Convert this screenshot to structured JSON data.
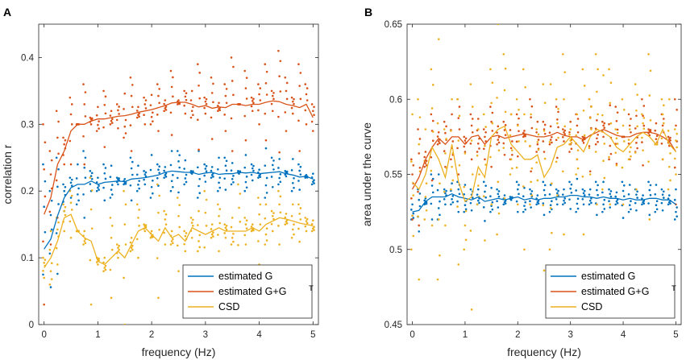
{
  "colors": {
    "estimated_g": "#0072BD",
    "estimated_ggt": "#D95319",
    "csd": "#EDB120",
    "axis": "#262626",
    "grid": "#e6e6e6"
  },
  "chart_data": [
    {
      "panel": "A",
      "type": "line",
      "title": "",
      "xlabel": "frequency (Hz)",
      "ylabel": "correlation r",
      "xlim": [
        -0.1,
        5.1
      ],
      "ylim": [
        0,
        0.45
      ],
      "xticks": [
        0,
        1,
        2,
        3,
        4,
        5
      ],
      "xtick_labels": [
        "0",
        "1",
        "2",
        "3",
        "4",
        "5"
      ],
      "yticks": [
        0,
        0.1,
        0.2,
        0.3,
        0.4
      ],
      "ytick_labels": [
        "0",
        "0.1",
        "0.2",
        "0.3",
        "0.4"
      ],
      "legend_position": "bottom-right",
      "legend": [
        {
          "label": "estimated G",
          "sup": ""
        },
        {
          "label": "estimated G+G",
          "sup": "T"
        },
        {
          "label": "CSD",
          "sup": ""
        }
      ],
      "x": [
        0,
        0.125,
        0.25,
        0.375,
        0.5,
        0.625,
        0.75,
        0.875,
        1.0,
        1.125,
        1.25,
        1.375,
        1.5,
        1.625,
        1.75,
        1.875,
        2.0,
        2.125,
        2.25,
        2.375,
        2.5,
        2.625,
        2.75,
        2.875,
        3.0,
        3.125,
        3.25,
        3.375,
        3.5,
        3.625,
        3.75,
        3.875,
        4.0,
        4.125,
        4.25,
        4.375,
        4.5,
        4.625,
        4.75,
        4.875,
        5.0
      ],
      "series": [
        {
          "name": "estimated G",
          "values": [
            0.113,
            0.128,
            0.163,
            0.19,
            0.205,
            0.21,
            0.21,
            0.215,
            0.21,
            0.213,
            0.214,
            0.215,
            0.214,
            0.218,
            0.219,
            0.22,
            0.222,
            0.224,
            0.228,
            0.23,
            0.229,
            0.228,
            0.228,
            0.225,
            0.227,
            0.228,
            0.225,
            0.226,
            0.226,
            0.228,
            0.227,
            0.228,
            0.226,
            0.227,
            0.228,
            0.229,
            0.226,
            0.224,
            0.221,
            0.222,
            0.218
          ],
          "spread": [
            0.24,
            0.2,
            0.25,
            0.21,
            0.22,
            0.18,
            0.26,
            0.23,
            0.2,
            0.24,
            0.19,
            0.22,
            0.21,
            0.25,
            0.2,
            0.23,
            0.19,
            0.24,
            0.22,
            0.2,
            0.26,
            0.21,
            0.23,
            0.19,
            0.24,
            0.22,
            0.2,
            0.25,
            0.21,
            0.23,
            0.2,
            0.24,
            0.22,
            0.19,
            0.25,
            0.21,
            0.23,
            0.2,
            0.24,
            0.22,
            0.21
          ]
        },
        {
          "name": "estimated G+G^T",
          "values": [
            0.165,
            0.19,
            0.24,
            0.26,
            0.29,
            0.3,
            0.3,
            0.305,
            0.308,
            0.308,
            0.31,
            0.312,
            0.313,
            0.315,
            0.318,
            0.32,
            0.322,
            0.325,
            0.328,
            0.332,
            0.333,
            0.333,
            0.33,
            0.326,
            0.328,
            0.324,
            0.326,
            0.325,
            0.33,
            0.33,
            0.328,
            0.33,
            0.33,
            0.333,
            0.335,
            0.334,
            0.33,
            0.328,
            0.325,
            0.33,
            0.31
          ],
          "spread": [
            0.3,
            0.26,
            0.32,
            0.28,
            0.34,
            0.3,
            0.36,
            0.31,
            0.29,
            0.35,
            0.3,
            0.33,
            0.28,
            0.37,
            0.31,
            0.34,
            0.3,
            0.36,
            0.32,
            0.38,
            0.33,
            0.35,
            0.31,
            0.39,
            0.34,
            0.37,
            0.32,
            0.36,
            0.4,
            0.33,
            0.38,
            0.34,
            0.36,
            0.39,
            0.35,
            0.41,
            0.37,
            0.34,
            0.39,
            0.36,
            0.33
          ]
        },
        {
          "name": "CSD",
          "values": [
            0.085,
            0.1,
            0.125,
            0.16,
            0.165,
            0.14,
            0.13,
            0.125,
            0.095,
            0.09,
            0.1,
            0.11,
            0.1,
            0.12,
            0.14,
            0.145,
            0.135,
            0.125,
            0.145,
            0.13,
            0.135,
            0.125,
            0.145,
            0.14,
            0.135,
            0.14,
            0.145,
            0.14,
            0.14,
            0.14,
            0.14,
            0.145,
            0.14,
            0.15,
            0.155,
            0.16,
            0.158,
            0.155,
            0.152,
            0.15,
            0.148
          ],
          "spread": [
            0.1,
            0.06,
            0.16,
            0.18,
            0.2,
            0.14,
            0.12,
            0.22,
            0.1,
            0.08,
            0.16,
            0.12,
            0.2,
            0.11,
            0.18,
            0.15,
            0.13,
            0.21,
            0.17,
            0.12,
            0.19,
            0.14,
            0.16,
            0.11,
            0.2,
            0.13,
            0.18,
            0.15,
            0.12,
            0.21,
            0.16,
            0.14,
            0.19,
            0.12,
            0.17,
            0.2,
            0.15,
            0.13,
            0.18,
            0.16,
            0.14
          ]
        }
      ]
    },
    {
      "panel": "B",
      "type": "line",
      "title": "",
      "xlabel": "frequency (Hz)",
      "ylabel": "area under the curve",
      "xlim": [
        -0.1,
        5.1
      ],
      "ylim": [
        0.45,
        0.65
      ],
      "xticks": [
        0,
        1,
        2,
        3,
        4,
        5
      ],
      "xtick_labels": [
        "0",
        "1",
        "2",
        "3",
        "4",
        "5"
      ],
      "yticks": [
        0.45,
        0.5,
        0.55,
        0.6,
        0.65
      ],
      "ytick_labels": [
        "0.45",
        "0.5",
        "0.55",
        "0.6",
        "0.65"
      ],
      "legend_position": "bottom-right",
      "legend": [
        {
          "label": "estimated G",
          "sup": ""
        },
        {
          "label": "estimated G+G",
          "sup": "T"
        },
        {
          "label": "CSD",
          "sup": ""
        }
      ],
      "x": [
        0,
        0.125,
        0.25,
        0.375,
        0.5,
        0.625,
        0.75,
        0.875,
        1.0,
        1.125,
        1.25,
        1.375,
        1.5,
        1.625,
        1.75,
        1.875,
        2.0,
        2.125,
        2.25,
        2.375,
        2.5,
        2.625,
        2.75,
        2.875,
        3.0,
        3.125,
        3.25,
        3.375,
        3.5,
        3.625,
        3.75,
        3.875,
        4.0,
        4.125,
        4.25,
        4.375,
        4.5,
        4.625,
        4.75,
        4.875,
        5.0
      ],
      "series": [
        {
          "name": "estimated G",
          "values": [
            0.525,
            0.526,
            0.532,
            0.535,
            0.535,
            0.535,
            0.537,
            0.535,
            0.534,
            0.533,
            0.535,
            0.532,
            0.533,
            0.534,
            0.533,
            0.534,
            0.535,
            0.533,
            0.534,
            0.533,
            0.534,
            0.534,
            0.535,
            0.535,
            0.536,
            0.536,
            0.535,
            0.535,
            0.534,
            0.535,
            0.534,
            0.534,
            0.533,
            0.534,
            0.533,
            0.533,
            0.534,
            0.534,
            0.533,
            0.533,
            0.53
          ],
          "spread": [
            0.52,
            0.54,
            0.53,
            0.55,
            0.52,
            0.54,
            0.53,
            0.545,
            0.525,
            0.54,
            0.53,
            0.545,
            0.525,
            0.54,
            0.53,
            0.535,
            0.545,
            0.525,
            0.54,
            0.53,
            0.545,
            0.525,
            0.54,
            0.53,
            0.545,
            0.525,
            0.54,
            0.53,
            0.545,
            0.525,
            0.54,
            0.53,
            0.545,
            0.525,
            0.54,
            0.53,
            0.545,
            0.525,
            0.54,
            0.53,
            0.52
          ]
        },
        {
          "name": "estimated G+G^T",
          "values": [
            0.54,
            0.548,
            0.56,
            0.568,
            0.574,
            0.57,
            0.575,
            0.575,
            0.57,
            0.575,
            0.576,
            0.57,
            0.575,
            0.576,
            0.574,
            0.575,
            0.576,
            0.577,
            0.576,
            0.575,
            0.575,
            0.576,
            0.578,
            0.576,
            0.575,
            0.575,
            0.573,
            0.576,
            0.578,
            0.58,
            0.578,
            0.576,
            0.575,
            0.575,
            0.577,
            0.578,
            0.578,
            0.577,
            0.575,
            0.572,
            0.565
          ],
          "spread": [
            0.56,
            0.58,
            0.555,
            0.59,
            0.57,
            0.585,
            0.56,
            0.6,
            0.575,
            0.59,
            0.565,
            0.58,
            0.595,
            0.57,
            0.585,
            0.56,
            0.59,
            0.575,
            0.6,
            0.565,
            0.585,
            0.57,
            0.595,
            0.58,
            0.565,
            0.59,
            0.575,
            0.6,
            0.57,
            0.585,
            0.56,
            0.595,
            0.575,
            0.59,
            0.565,
            0.6,
            0.58,
            0.57,
            0.59,
            0.575,
            0.6
          ]
        },
        {
          "name": "CSD",
          "values": [
            0.545,
            0.54,
            0.55,
            0.568,
            0.56,
            0.548,
            0.57,
            0.545,
            0.532,
            0.535,
            0.555,
            0.548,
            0.575,
            0.58,
            0.582,
            0.57,
            0.565,
            0.56,
            0.56,
            0.563,
            0.548,
            0.555,
            0.568,
            0.57,
            0.575,
            0.57,
            0.565,
            0.575,
            0.58,
            0.578,
            0.575,
            0.568,
            0.565,
            0.57,
            0.575,
            0.578,
            0.575,
            0.57,
            0.58,
            0.57,
            0.565
          ],
          "spread": [
            0.5,
            0.6,
            0.52,
            0.62,
            0.48,
            0.58,
            0.54,
            0.6,
            0.5,
            0.61,
            0.53,
            0.59,
            0.62,
            0.51,
            0.63,
            0.55,
            0.6,
            0.62,
            0.53,
            0.58,
            0.61,
            0.5,
            0.6,
            0.63,
            0.57,
            0.55,
            0.62,
            0.6,
            0.63,
            0.54,
            0.62,
            0.58,
            0.6,
            0.56,
            0.61,
            0.59,
            0.63,
            0.57,
            0.6,
            0.54,
            0.58
          ]
        }
      ]
    }
  ]
}
